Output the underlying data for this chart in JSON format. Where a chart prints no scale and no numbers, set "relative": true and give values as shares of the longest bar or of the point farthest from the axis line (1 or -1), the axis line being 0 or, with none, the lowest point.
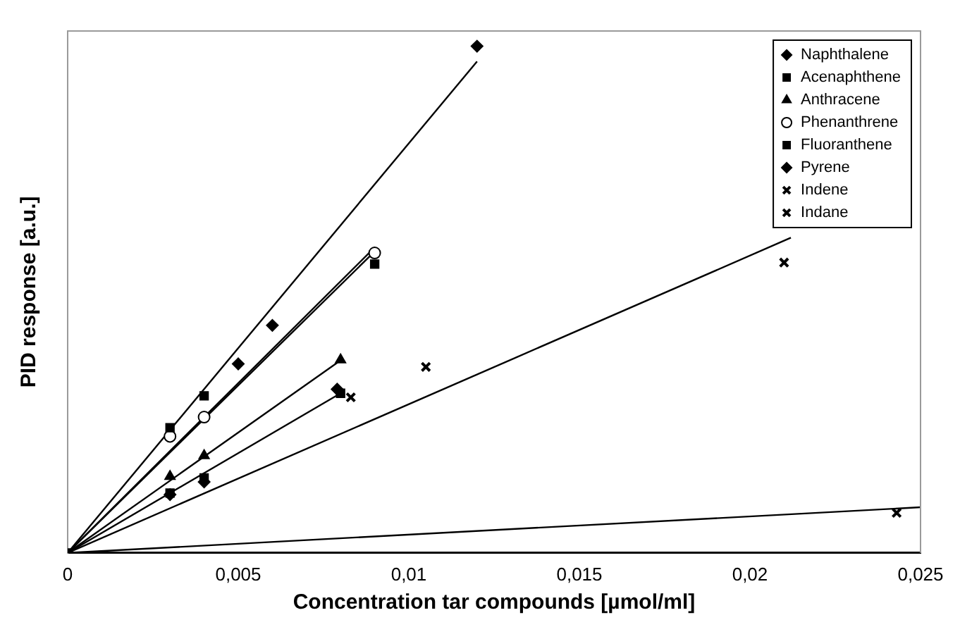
{
  "chart_data": {
    "type": "scatter",
    "xlabel": "Concentration tar compounds [µmol/ml]",
    "ylabel": "PID response [a.u.]",
    "relative": true,
    "xlim": [
      0,
      0.025
    ],
    "xticks": [
      {
        "value": 0,
        "label": "0"
      },
      {
        "value": 0.005,
        "label": "0,005"
      },
      {
        "value": 0.01,
        "label": "0,01"
      },
      {
        "value": 0.015,
        "label": "0,015"
      },
      {
        "value": 0.02,
        "label": "0,02"
      },
      {
        "value": 0.025,
        "label": "0,025"
      }
    ],
    "legend": "top right",
    "grid": false,
    "series": [
      {
        "name": "Naphthalene",
        "color": "#000000",
        "marker": "diamond",
        "x": [
          0.005,
          0.006,
          0.012
        ],
        "values": [
          0.373,
          0.449,
          1
        ]
      },
      {
        "name": "Acenaphthene",
        "color": "#000000",
        "marker": "square",
        "x": [
          0,
          0.003,
          0.004,
          0.009
        ],
        "values": [
          0,
          0.247,
          0.31,
          0.57
        ]
      },
      {
        "name": "Anthracene",
        "color": "#000000",
        "marker": "triangle",
        "x": [
          0.003,
          0.004,
          0.008
        ],
        "values": [
          0.151,
          0.192,
          0.381
        ]
      },
      {
        "name": "Phenanthrene",
        "color": "#000000",
        "marker": "circle",
        "x": [
          0.003,
          0.004,
          0.009
        ],
        "values": [
          0.23,
          0.268,
          0.592
        ]
      },
      {
        "name": "Fluoranthene",
        "color": "#000000",
        "marker": "square",
        "x": [
          0.003,
          0.004,
          0.008
        ],
        "values": [
          0.118,
          0.148,
          0.315
        ]
      },
      {
        "name": "Pyrene",
        "color": "#000000",
        "marker": "diamond",
        "x": [
          0.003,
          0.004,
          0.0079
        ],
        "values": [
          0.115,
          0.14,
          0.323
        ]
      },
      {
        "name": "Indene",
        "color": "#000000",
        "marker": "cross",
        "x": [
          0.0083,
          0.0105,
          0.021
        ],
        "values": [
          0.307,
          0.367,
          0.573
        ]
      },
      {
        "name": "Indane",
        "color": "#000000",
        "marker": "cross",
        "x": [
          0.0243
        ],
        "values": [
          0.079
        ]
      },
      {
        "type": "line",
        "color": "#000000",
        "x": [
          0,
          0.012
        ],
        "values": [
          0,
          0.97
        ]
      },
      {
        "type": "line",
        "color": "#000000",
        "x": [
          0,
          0.009
        ],
        "values": [
          0,
          0.595
        ]
      },
      {
        "type": "line",
        "color": "#000000",
        "x": [
          0,
          0.009
        ],
        "values": [
          0,
          0.603
        ]
      },
      {
        "type": "line",
        "color": "#000000",
        "x": [
          0,
          0.008
        ],
        "values": [
          0,
          0.38
        ]
      },
      {
        "type": "line",
        "color": "#000000",
        "x": [
          0,
          0.008
        ],
        "values": [
          0,
          0.315
        ]
      },
      {
        "type": "line",
        "color": "#000000",
        "x": [
          0,
          0.0212
        ],
        "values": [
          0,
          0.622
        ]
      },
      {
        "type": "line",
        "color": "#000000",
        "x": [
          0,
          0.025
        ],
        "values": [
          0,
          0.09
        ]
      }
    ]
  }
}
